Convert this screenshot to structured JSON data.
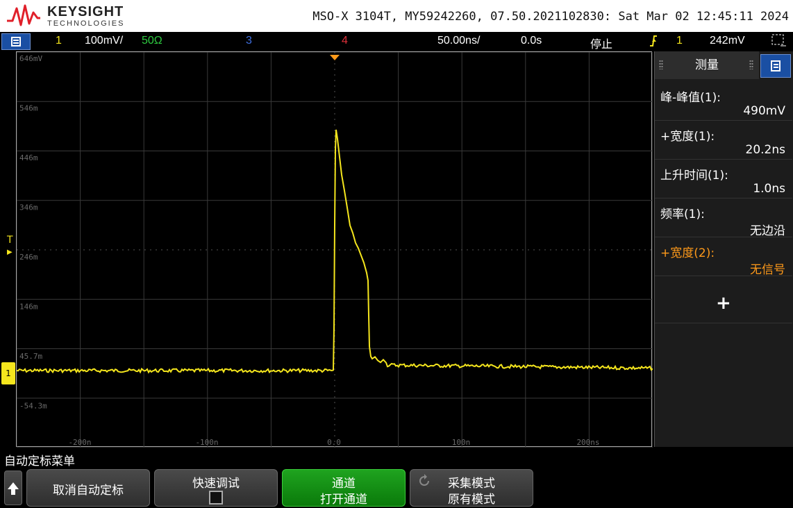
{
  "header": {
    "brand": "KEYSIGHT",
    "brand_sub": "TECHNOLOGIES",
    "instrument_info": "MSO-X 3104T, MY59242260, 07.50.2021102830: Sat Mar 02 12:45:11 2024"
  },
  "status_bar": {
    "ch1_label": "1",
    "ch1_scale": "100mV/",
    "ch1_impedance": "50Ω",
    "ch3_label": "3",
    "ch4_label": "4",
    "timebase": "50.00ns/",
    "delay": "0.0s",
    "run_state": "停止",
    "trigger_source": "1",
    "trigger_level": "242mV"
  },
  "plot": {
    "y_labels": [
      "646mV",
      "546m",
      "446m",
      "346m",
      "246m",
      "146m",
      "45.7m",
      "-54.3m"
    ],
    "x_labels": [
      "-200n",
      "-100n",
      "0.0",
      "100n",
      "200ns"
    ],
    "trigger_marker": "T",
    "channel_marker": "1"
  },
  "measurements": {
    "title": "测量",
    "items": [
      {
        "label": "峰-峰值(1):",
        "value": "490mV",
        "color": "white"
      },
      {
        "label": "+宽度(1):",
        "value": "20.2ns",
        "color": "white"
      },
      {
        "label": "上升时间(1):",
        "value": "1.0ns",
        "color": "white"
      },
      {
        "label": "频率(1):",
        "value": "无边沿",
        "color": "white"
      },
      {
        "label": "+宽度(2):",
        "value": "无信号",
        "color": "orange"
      }
    ],
    "add_label": "+"
  },
  "softkeys": {
    "menu_title": "自动定标菜单",
    "cancel_autoscale": "取消自动定标",
    "fast_debug": "快速调试",
    "channels_l1": "通道",
    "channels_l2": "打开通道",
    "acq_mode_l1": "采集模式",
    "acq_mode_l2": "原有模式"
  },
  "colors": {
    "ch1": "#f5e61d",
    "ch2": "#2ecc40",
    "ch3": "#3f6fe0",
    "ch4": "#e0303a",
    "accent_blue": "#1a4fa3"
  },
  "icons": {
    "menu": "menu-icon",
    "trigger": "trigger-edge-icon",
    "acq": "refresh-icon",
    "up": "up-arrow-icon"
  }
}
